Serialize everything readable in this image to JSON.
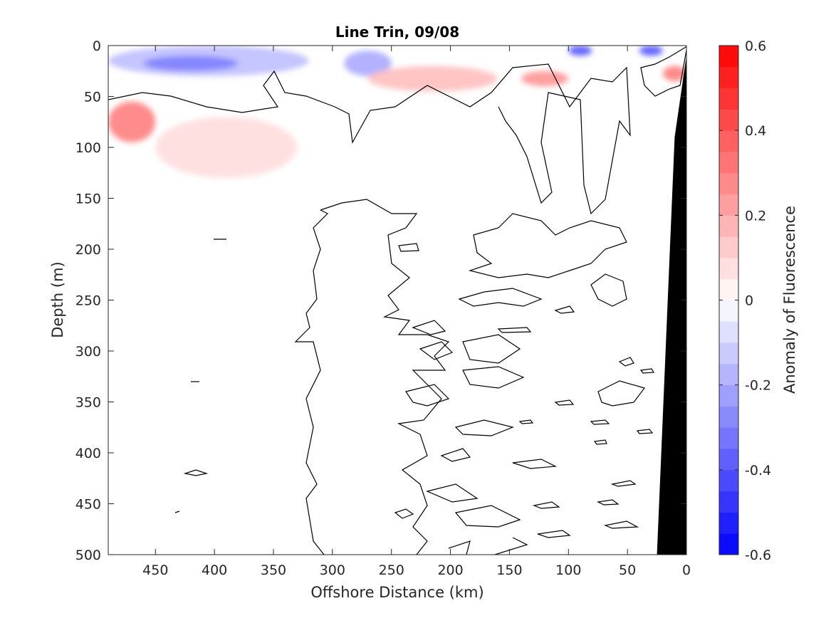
{
  "chart_data": {
    "type": "heatmap",
    "title": "Line Trin, 09/08",
    "xlabel": "Offshore Distance (km)",
    "ylabel": "Depth (m)",
    "colorbar_label": "Anomaly of Fluorescence",
    "xlim": [
      490,
      0
    ],
    "ylim": [
      0,
      500
    ],
    "y_reversed": true,
    "x_reversed": true,
    "x_ticks": [
      450,
      400,
      350,
      300,
      250,
      200,
      150,
      100,
      50,
      0
    ],
    "y_ticks": [
      0,
      50,
      100,
      150,
      200,
      250,
      300,
      350,
      400,
      450,
      500
    ],
    "colorbar": {
      "range": [
        -0.6,
        0.6
      ],
      "ticks": [
        -0.6,
        -0.4,
        -0.2,
        0,
        0.2,
        0.4,
        0.6
      ],
      "levels": 24,
      "negative_color": "#0000ff",
      "positive_color": "#ff0000",
      "zero_color": "#ffffff"
    },
    "anomaly_patches": [
      {
        "x": [
          490,
          450,
          400,
          350,
          320
        ],
        "depth": [
          0,
          30
        ],
        "value": -0.15
      },
      {
        "x": [
          460,
          380
        ],
        "depth": [
          10,
          25
        ],
        "value": -0.3
      },
      {
        "x": [
          290,
          250
        ],
        "depth": [
          5,
          30
        ],
        "value": -0.2
      },
      {
        "x": [
          100,
          80
        ],
        "depth": [
          0,
          10
        ],
        "value": -0.4
      },
      {
        "x": [
          40,
          20
        ],
        "depth": [
          0,
          10
        ],
        "value": -0.4
      },
      {
        "x": [
          490,
          450
        ],
        "depth": [
          55,
          95
        ],
        "value": 0.3
      },
      {
        "x": [
          450,
          330
        ],
        "depth": [
          70,
          130
        ],
        "value": 0.08
      },
      {
        "x": [
          270,
          160
        ],
        "depth": [
          20,
          45
        ],
        "value": 0.15
      },
      {
        "x": [
          140,
          100
        ],
        "depth": [
          25,
          40
        ],
        "value": 0.25
      },
      {
        "x": [
          20,
          0
        ],
        "depth": [
          20,
          35
        ],
        "value": 0.3
      }
    ],
    "shelf_bathymetry": {
      "x": [
        0,
        10,
        25,
        490
      ],
      "depth": [
        10,
        90,
        500,
        500
      ],
      "color": "#000000"
    }
  }
}
